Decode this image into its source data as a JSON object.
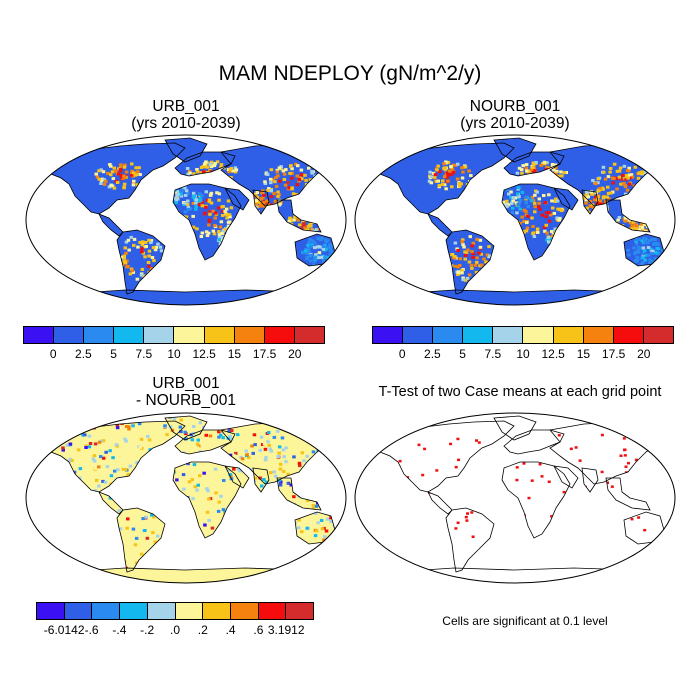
{
  "main_title": "MAM NDEPLOY (gN/m^2/y)",
  "panels": {
    "p1": {
      "title_line1": "URB_001",
      "title_line2": "(yrs 2010-2039)"
    },
    "p2": {
      "title_line1": "NOURB_001",
      "title_line2": "(yrs 2010-2039)"
    },
    "p3": {
      "title_line1": "URB_001",
      "title_line2": "- NOURB_001"
    },
    "p4": {
      "title_line1": "T-Test of two Case means at each grid point",
      "note": "Cells are significant at 0.1 level"
    }
  },
  "colorbars": {
    "absolute": {
      "colors": [
        "#3b10f2",
        "#2f5fe6",
        "#2a8af0",
        "#12b8ee",
        "#a4d3ea",
        "#fdf59a",
        "#f8c318",
        "#f5820e",
        "#f50d0d",
        "#d42c2c"
      ],
      "labels": [
        "0",
        "2.5",
        "5",
        "7.5",
        "10",
        "12.5",
        "15",
        "17.5",
        "20"
      ]
    },
    "difference": {
      "colors": [
        "#3b10f2",
        "#2f5fe6",
        "#2a8af0",
        "#12b8ee",
        "#a4d3ea",
        "#fdf59a",
        "#f8c318",
        "#f5820e",
        "#f50d0d",
        "#d42c2c"
      ],
      "labels": [
        "-6.0142",
        "-.6",
        "-.4",
        "-.2",
        ".0",
        ".2",
        ".4",
        ".6",
        "3.1912"
      ]
    }
  },
  "map_colors": {
    "ocean": "#ffffff",
    "coast": "#000000",
    "signif": "#ee1111"
  }
}
